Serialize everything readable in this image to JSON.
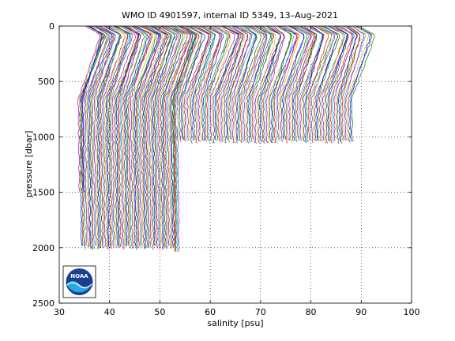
{
  "chart_data": {
    "type": "line",
    "title": "WMO ID 4901597, internal ID 5349, 13–Aug–2021",
    "xlabel": "salinity [psu]",
    "ylabel": "pressure [dbar]",
    "xlim": [
      30,
      100
    ],
    "ylim": [
      0,
      2500
    ],
    "y_reversed": true,
    "grid": "dotted",
    "xticks": [
      "30",
      "40",
      "50",
      "60",
      "70",
      "80",
      "90",
      "100"
    ],
    "yticks": [
      "0",
      "500",
      "1000",
      "1500",
      "2000",
      "2500"
    ],
    "series_colors": [
      "#0000ff",
      "#008000",
      "#ff0000",
      "#00bfbf",
      "#bf00bf",
      "#bfbf00",
      "#3f3f3f"
    ],
    "profile_groups": [
      {
        "from": 35.5,
        "to": 54.5,
        "step": 0.26,
        "maxp": 2000
      },
      {
        "from": 35.2,
        "to": 36.2,
        "step": 0.3,
        "maxp": 1500
      },
      {
        "from": 54.0,
        "to": 55.0,
        "step": 0.3,
        "maxp": 2030
      },
      {
        "from": 55.0,
        "to": 89.8,
        "step": 0.32,
        "maxp": 1040
      }
    ],
    "logo": {
      "text": "NOAA"
    }
  }
}
